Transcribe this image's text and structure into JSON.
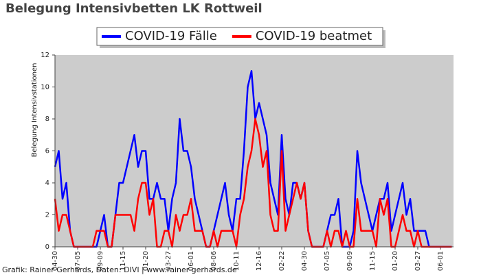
{
  "chart_data": {
    "type": "line",
    "title": "Belegung Intensivbetten LK Rottweil",
    "y_label": "Belegung Intensivstationen",
    "footer": "Grafik: Rainer Gerhards, Daten: DIVI | www.rainer-gerhards.de",
    "categories": [
      "04-30",
      null,
      null,
      null,
      null,
      null,
      "07-05",
      null,
      null,
      null,
      null,
      null,
      "09-09",
      null,
      null,
      null,
      null,
      null,
      "11-15",
      null,
      null,
      null,
      null,
      null,
      "01-20",
      null,
      null,
      null,
      null,
      null,
      "03-27",
      null,
      null,
      null,
      null,
      null,
      "06-01",
      null,
      null,
      null,
      null,
      null,
      "08-06",
      null,
      null,
      null,
      null,
      null,
      "10-11",
      null,
      null,
      null,
      null,
      null,
      "12-16",
      null,
      null,
      null,
      null,
      null,
      "02-22",
      null,
      null,
      null,
      null,
      null,
      "04-30",
      null,
      null,
      null,
      null,
      null,
      "07-05",
      null,
      null,
      null,
      null,
      null,
      "09-09",
      null,
      null,
      null,
      null,
      null,
      "11-15",
      null,
      null,
      null,
      null,
      null,
      "01-20",
      null,
      null,
      null,
      null,
      null,
      "03-27",
      null,
      null,
      null,
      null,
      null,
      "06-01",
      null,
      null,
      null
    ],
    "series": [
      {
        "name": "COVID-19 Fälle",
        "color": "#0000ff",
        "values": [
          5,
          6,
          3,
          4,
          1,
          0,
          0,
          0,
          0,
          0,
          0,
          0,
          1,
          2,
          0,
          0,
          2,
          4,
          4,
          5,
          6,
          7,
          5,
          6,
          6,
          3,
          3,
          4,
          3,
          3,
          1,
          3,
          4,
          8,
          6,
          6,
          5,
          3,
          2,
          1,
          0,
          0,
          1,
          2,
          3,
          4,
          2,
          1,
          3,
          3,
          6,
          10,
          11,
          8,
          9,
          8,
          7,
          4,
          3,
          2,
          7,
          3,
          2,
          4,
          4,
          3,
          4,
          1,
          0,
          0,
          0,
          0,
          1,
          2,
          2,
          3,
          0,
          0,
          0,
          1,
          6,
          4,
          3,
          2,
          1,
          2,
          3,
          3,
          4,
          1,
          2,
          3,
          4,
          2,
          3,
          1,
          1,
          1,
          1,
          0,
          0,
          0,
          0,
          0,
          0,
          0
        ]
      },
      {
        "name": "COVID-19 beatmet",
        "color": "#ff0000",
        "values": [
          3,
          1,
          2,
          2,
          1,
          0,
          0,
          0,
          0,
          0,
          0,
          1,
          1,
          1,
          0,
          0,
          2,
          2,
          2,
          2,
          2,
          1,
          3,
          4,
          4,
          2,
          3,
          0,
          0,
          1,
          1,
          0,
          2,
          1,
          2,
          2,
          3,
          1,
          1,
          1,
          0,
          0,
          1,
          0,
          1,
          1,
          1,
          1,
          0,
          2,
          3,
          5,
          6,
          8,
          7,
          5,
          6,
          2,
          1,
          1,
          6,
          1,
          2,
          3,
          4,
          3,
          4,
          1,
          0,
          0,
          0,
          0,
          1,
          0,
          1,
          1,
          0,
          1,
          0,
          0,
          3,
          1,
          1,
          1,
          1,
          0,
          3,
          2,
          3,
          0,
          0,
          1,
          2,
          1,
          1,
          0,
          1,
          0,
          0,
          0,
          0,
          0,
          0,
          0,
          0,
          0
        ]
      }
    ],
    "ylim": [
      0,
      12
    ],
    "yticks": [
      0,
      2,
      4,
      6,
      8,
      10,
      12
    ],
    "plot_background": "#cccccc",
    "legend": "top"
  }
}
